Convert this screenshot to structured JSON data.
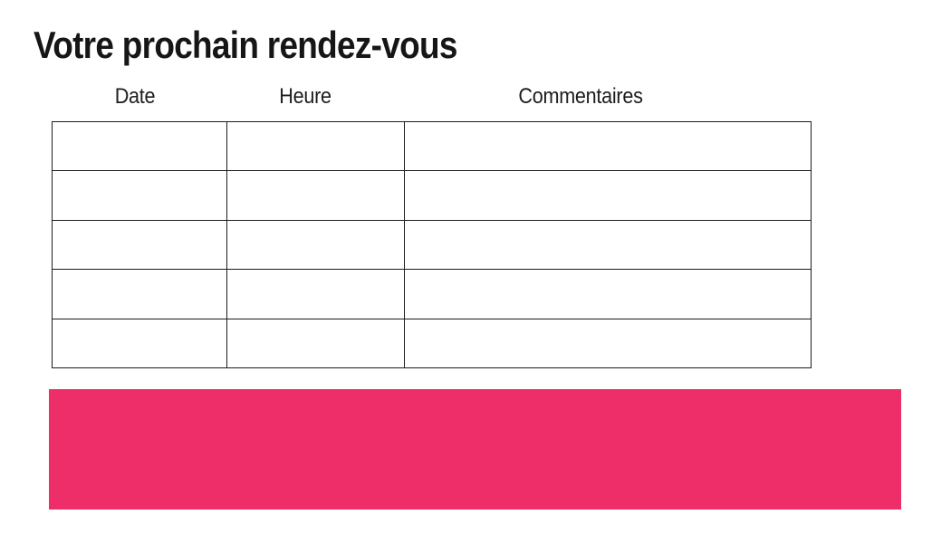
{
  "page": {
    "title": "Votre prochain rendez-vous"
  },
  "table": {
    "headers": [
      "Date",
      "Heure",
      "Commentaires"
    ],
    "rows": [
      [
        "",
        "",
        ""
      ],
      [
        "",
        "",
        ""
      ],
      [
        "",
        "",
        ""
      ],
      [
        "",
        "",
        ""
      ],
      [
        "",
        "",
        ""
      ]
    ]
  },
  "colors": {
    "banner_pink": "#ED2E68",
    "table_border": "#1C1C1C",
    "text": "#161616"
  }
}
